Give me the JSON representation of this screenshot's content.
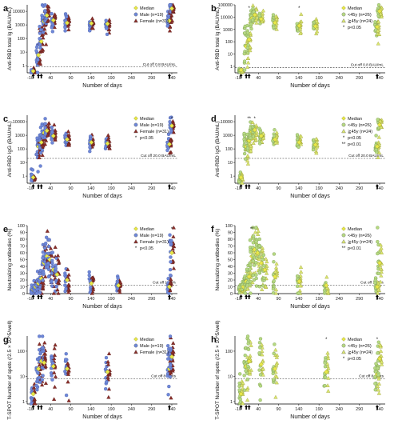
{
  "colors": {
    "median": "#e8e84a",
    "male": "#6f88d8",
    "female": "#8b2f2a",
    "lt45": "#b6d982",
    "ge45": "#d9e670",
    "cutline": "#333333"
  },
  "chart_data": [
    {
      "id": "a",
      "type": "scatter",
      "panel_label": "a",
      "scale": "log",
      "ylabel": "Anti-RBD total Ig (BAU/mL)",
      "xlabel": "Number of days",
      "yticks": [
        "1",
        "10",
        "100",
        "1000",
        "10000"
      ],
      "yrange": [
        0.3,
        30000
      ],
      "xticks": [
        "-10",
        "40",
        "90",
        "140",
        "190",
        "240",
        "290",
        "340"
      ],
      "cutoff": {
        "value": 0.8,
        "label": "Cut off 0.8 BAU/mL"
      },
      "legend": [
        {
          "label": "Median",
          "marker": "diamond",
          "color": "#e8e84a"
        },
        {
          "label": "Male (n=19)",
          "marker": "circle",
          "color": "#6f88d8"
        },
        {
          "label": "Female (n=31)",
          "marker": "triangle",
          "color": "#8b2f2a"
        }
      ],
      "groups": [
        {
          "day": -3,
          "median": 0.4,
          "spread": 0.1
        },
        {
          "day": 10,
          "median": 6,
          "spread": 0.8
        },
        {
          "day": 17,
          "median": 60,
          "spread": 0.7
        },
        {
          "day": 24,
          "median": 1800,
          "spread": 0.5
        },
        {
          "day": 31,
          "median": 5000,
          "spread": 0.4
        },
        {
          "day": 47,
          "median": 2200,
          "spread": 0.3
        },
        {
          "day": 81,
          "median": 1400,
          "spread": 0.3
        },
        {
          "day": 141,
          "median": 1300,
          "spread": 0.25
        },
        {
          "day": 181,
          "median": 1200,
          "spread": 0.25
        },
        {
          "day": 334,
          "median": 2000,
          "spread": 0.4
        },
        {
          "day": 340,
          "median": 16000,
          "spread": 0.3
        }
      ],
      "stars": [],
      "arrows": [
        -3,
        10,
        17,
        334
      ]
    },
    {
      "id": "b",
      "type": "scatter",
      "panel_label": "b",
      "scale": "log",
      "ylabel": "Anti-RBD total Ig (BAU/mL)",
      "xlabel": "Number of days",
      "yticks": [
        "1",
        "10",
        "100",
        "1000",
        "10000",
        "100000"
      ],
      "yrange": [
        0.3,
        100000
      ],
      "xticks": [
        "-10",
        "40",
        "90",
        "140",
        "190",
        "240",
        "290",
        "340"
      ],
      "cutoff": {
        "value": 0.8,
        "label": "Cut off 0.8 BAU/mL"
      },
      "legend": [
        {
          "label": "Median",
          "marker": "diamond",
          "color": "#e8e84a"
        },
        {
          "label": "<45y (n=26)",
          "marker": "circle",
          "color": "#b6d982"
        },
        {
          "label": "≧45y (n=24)",
          "marker": "triangle",
          "color": "#d9e670"
        },
        {
          "label": "p<0.05",
          "marker": "star",
          "color": "#111111",
          "prefix": "*"
        }
      ],
      "groups": [
        {
          "day": -3,
          "median": 0.5,
          "spread": 0.1
        },
        {
          "day": 10,
          "median": 40,
          "spread": 0.8
        },
        {
          "day": 17,
          "median": 150,
          "spread": 0.6
        },
        {
          "day": 24,
          "median": 8000,
          "spread": 0.4
        },
        {
          "day": 31,
          "median": 15000,
          "spread": 0.35
        },
        {
          "day": 47,
          "median": 7000,
          "spread": 0.3
        },
        {
          "day": 81,
          "median": 3500,
          "spread": 0.3
        },
        {
          "day": 141,
          "median": 2000,
          "spread": 0.3
        },
        {
          "day": 181,
          "median": 1800,
          "spread": 0.3
        },
        {
          "day": 334,
          "median": 1600,
          "spread": 0.4
        },
        {
          "day": 340,
          "median": 30000,
          "spread": 0.3
        }
      ],
      "stars": [
        {
          "day": 17,
          "text": "*"
        },
        {
          "day": 141,
          "text": "*"
        }
      ],
      "arrows": [
        -3,
        10,
        17,
        334
      ]
    },
    {
      "id": "c",
      "type": "scatter",
      "panel_label": "c",
      "scale": "log",
      "ylabel": "Anti-RBD IgG (BAU/mL)",
      "xlabel": "Number of days",
      "yticks": [
        "1",
        "10",
        "100",
        "1000",
        "10000"
      ],
      "yrange": [
        0.3,
        30000
      ],
      "xticks": [
        "-10",
        "40",
        "90",
        "140",
        "190",
        "240",
        "290",
        "340"
      ],
      "cutoff": {
        "value": 20,
        "label": "Cut off 20.0 BAU/mL"
      },
      "legend": [
        {
          "label": "Median",
          "marker": "diamond",
          "color": "#e8e84a"
        },
        {
          "label": "Male (n=19)",
          "marker": "circle",
          "color": "#6f88d8"
        },
        {
          "label": "Female (n=31)",
          "marker": "triangle",
          "color": "#8b2f2a"
        },
        {
          "label": "p<0.05",
          "marker": "star",
          "color": "#111111",
          "prefix": "*"
        }
      ],
      "groups": [
        {
          "day": -3,
          "median": 0.8,
          "spread": 0.25
        },
        {
          "day": 10,
          "median": 150,
          "spread": 0.6
        },
        {
          "day": 17,
          "median": 300,
          "spread": 0.5
        },
        {
          "day": 24,
          "median": 1500,
          "spread": 0.4
        },
        {
          "day": 31,
          "median": 2200,
          "spread": 0.35
        },
        {
          "day": 47,
          "median": 900,
          "spread": 0.3
        },
        {
          "day": 81,
          "median": 500,
          "spread": 0.3
        },
        {
          "day": 141,
          "median": 300,
          "spread": 0.3
        },
        {
          "day": 181,
          "median": 250,
          "spread": 0.3
        },
        {
          "day": 334,
          "median": 220,
          "spread": 0.35
        },
        {
          "day": 340,
          "median": 5000,
          "spread": 0.3
        }
      ],
      "stars": [
        {
          "day": 340,
          "text": "*"
        }
      ],
      "arrows": [
        -3,
        10,
        17,
        334
      ]
    },
    {
      "id": "d",
      "type": "scatter",
      "panel_label": "d",
      "scale": "log",
      "ylabel": "Anti-RBD IgG (BAU/mL)",
      "xlabel": "Number of days",
      "yticks": [
        "1",
        "10",
        "100",
        "1000",
        "10000"
      ],
      "yrange": [
        0.3,
        30000
      ],
      "xticks": [
        "-10",
        "40",
        "90",
        "140",
        "190",
        "240",
        "290",
        "340"
      ],
      "cutoff": {
        "value": 20,
        "label": "Cut off 20.0 BAU/mL"
      },
      "legend": [
        {
          "label": "Median",
          "marker": "diamond",
          "color": "#e8e84a"
        },
        {
          "label": "<45y (n=26)",
          "marker": "circle",
          "color": "#b6d982"
        },
        {
          "label": "≧45y (n=24)",
          "marker": "triangle",
          "color": "#d9e670"
        },
        {
          "label": "p<0.05",
          "marker": "star",
          "color": "#111111",
          "prefix": "*"
        },
        {
          "label": "p<0.01",
          "marker": "star",
          "color": "#111111",
          "prefix": "**"
        }
      ],
      "groups": [
        {
          "day": -3,
          "median": 0.8,
          "spread": 0.25
        },
        {
          "day": 10,
          "median": 150,
          "spread": 0.6
        },
        {
          "day": 17,
          "median": 400,
          "spread": 0.5
        },
        {
          "day": 24,
          "median": 1800,
          "spread": 0.4
        },
        {
          "day": 31,
          "median": 2500,
          "spread": 0.35
        },
        {
          "day": 47,
          "median": 900,
          "spread": 0.3
        },
        {
          "day": 81,
          "median": 500,
          "spread": 0.3
        },
        {
          "day": 141,
          "median": 300,
          "spread": 0.3
        },
        {
          "day": 181,
          "median": 200,
          "spread": 0.3
        },
        {
          "day": 334,
          "median": 150,
          "spread": 0.35
        },
        {
          "day": 340,
          "median": 6000,
          "spread": 0.3
        }
      ],
      "stars": [
        {
          "day": 17,
          "text": "**"
        },
        {
          "day": 31,
          "text": "*"
        }
      ],
      "arrows": [
        -3,
        10,
        17,
        334
      ]
    },
    {
      "id": "e",
      "type": "scatter",
      "panel_label": "e",
      "scale": "linear",
      "ylabel": "Neutralizing antibodies  (%)",
      "xlabel": "Number of days",
      "yticks": [
        "0",
        "10",
        "20",
        "30",
        "40",
        "50",
        "60",
        "70",
        "80",
        "90",
        "100"
      ],
      "yrange": [
        0,
        100
      ],
      "xticks": [
        "-10",
        "40",
        "90",
        "140",
        "190",
        "240",
        "290",
        "340"
      ],
      "cutoff": {
        "value": 12.5,
        "label": "Cut off 12.5%"
      },
      "legend": [
        {
          "label": "Median",
          "marker": "diamond",
          "color": "#e8e84a"
        },
        {
          "label": "Male (n=19)",
          "marker": "circle",
          "color": "#6f88d8"
        },
        {
          "label": "Female (n=31)",
          "marker": "triangle",
          "color": "#8b2f2a"
        },
        {
          "label": "p<0.05",
          "marker": "star",
          "color": "#111111",
          "prefix": "*"
        }
      ],
      "groups": [
        {
          "day": -3,
          "median": 6,
          "spread": 4
        },
        {
          "day": 3,
          "median": 10,
          "spread": 6
        },
        {
          "day": 10,
          "median": 15,
          "spread": 8
        },
        {
          "day": 17,
          "median": 22,
          "spread": 12
        },
        {
          "day": 24,
          "median": 45,
          "spread": 18
        },
        {
          "day": 31,
          "median": 55,
          "spread": 20
        },
        {
          "day": 38,
          "median": 50,
          "spread": 20
        },
        {
          "day": 47,
          "median": 35,
          "spread": 16
        },
        {
          "day": 56,
          "median": 28,
          "spread": 14
        },
        {
          "day": 81,
          "median": 20,
          "spread": 12
        },
        {
          "day": 141,
          "median": 15,
          "spread": 10
        },
        {
          "day": 208,
          "median": 12,
          "spread": 8
        },
        {
          "day": 334,
          "median": 10,
          "spread": 6
        },
        {
          "day": 340,
          "median": 60,
          "spread": 20
        }
      ],
      "stars": [
        {
          "day": 340,
          "text": "*"
        }
      ],
      "arrows": [
        -3,
        10,
        17,
        334
      ]
    },
    {
      "id": "f",
      "type": "scatter",
      "panel_label": "f",
      "scale": "linear",
      "ylabel": "Neutralizing antibodies  (%)",
      "xlabel": "Number of days",
      "yticks": [
        "0",
        "10",
        "20",
        "30",
        "40",
        "50",
        "60",
        "70",
        "80",
        "90",
        "100"
      ],
      "yrange": [
        0,
        100
      ],
      "xticks": [
        "-10",
        "40",
        "90",
        "140",
        "190",
        "240",
        "290",
        "340"
      ],
      "cutoff": {
        "value": 12.5,
        "label": "Cut off 12.5%"
      },
      "legend": [
        {
          "label": "Median",
          "marker": "diamond",
          "color": "#e8e84a"
        },
        {
          "label": "<45y (n=26)",
          "marker": "circle",
          "color": "#b6d982"
        },
        {
          "label": "≧45y (n=24)",
          "marker": "triangle",
          "color": "#d9e670"
        },
        {
          "label": "p<0.01",
          "marker": "star",
          "color": "#111111",
          "prefix": "**"
        }
      ],
      "groups": [
        {
          "day": -3,
          "median": 6,
          "spread": 4
        },
        {
          "day": 3,
          "median": 10,
          "spread": 6
        },
        {
          "day": 10,
          "median": 18,
          "spread": 8
        },
        {
          "day": 17,
          "median": 25,
          "spread": 12
        },
        {
          "day": 24,
          "median": 55,
          "spread": 20
        },
        {
          "day": 31,
          "median": 65,
          "spread": 20
        },
        {
          "day": 38,
          "median": 60,
          "spread": 20
        },
        {
          "day": 47,
          "median": 45,
          "spread": 18
        },
        {
          "day": 56,
          "median": 35,
          "spread": 16
        },
        {
          "day": 81,
          "median": 25,
          "spread": 14
        },
        {
          "day": 141,
          "median": 18,
          "spread": 10
        },
        {
          "day": 208,
          "median": 12,
          "spread": 8
        },
        {
          "day": 334,
          "median": 10,
          "spread": 6
        },
        {
          "day": 340,
          "median": 45,
          "spread": 20
        }
      ],
      "stars": [
        {
          "day": 24,
          "text": "**"
        }
      ],
      "arrows": [
        -3,
        10,
        17,
        334
      ]
    },
    {
      "id": "g",
      "type": "scatter",
      "panel_label": "g",
      "scale": "log",
      "ylabel": "T-SPOT Number of spots (/2.5 × 10^5/well)",
      "xlabel": "Number of days",
      "yticks": [
        "1",
        "10",
        "100"
      ],
      "yrange": [
        0.8,
        400
      ],
      "xticks": [
        "-10",
        "40",
        "90",
        "140",
        "190",
        "240",
        "290",
        "340"
      ],
      "cutoff": {
        "value": 8,
        "label": "Cut off 8 spots"
      },
      "legend": [
        {
          "label": "Median",
          "marker": "diamond",
          "color": "#e8e84a"
        },
        {
          "label": "Male (n=19)",
          "marker": "circle",
          "color": "#6f88d8"
        },
        {
          "label": "Female (n=31)",
          "marker": "triangle",
          "color": "#8b2f2a"
        }
      ],
      "groups": [
        {
          "day": -3,
          "median": 2,
          "spread": 0.3
        },
        {
          "day": 10,
          "median": 20,
          "spread": 0.5
        },
        {
          "day": 17,
          "median": 40,
          "spread": 0.5
        },
        {
          "day": 24,
          "median": 35,
          "spread": 0.45
        },
        {
          "day": 47,
          "median": 25,
          "spread": 0.45
        },
        {
          "day": 81,
          "median": 20,
          "spread": 0.45
        },
        {
          "day": 181,
          "median": 15,
          "spread": 0.45
        },
        {
          "day": 334,
          "median": 20,
          "spread": 0.45
        },
        {
          "day": 340,
          "median": 60,
          "spread": 0.4
        }
      ],
      "stars": [],
      "arrows": [
        -3,
        10,
        17,
        334
      ]
    },
    {
      "id": "h",
      "type": "scatter",
      "panel_label": "h",
      "scale": "log",
      "ylabel": "T-SPOT Number of spots (/2.5 × 10^5/well)",
      "xlabel": "Number of days",
      "yticks": [
        "1",
        "10",
        "100"
      ],
      "yrange": [
        0.8,
        400
      ],
      "xticks": [
        "-10",
        "40",
        "90",
        "140",
        "190",
        "240",
        "290",
        "340"
      ],
      "cutoff": {
        "value": 8,
        "label": "Cut off 8 spots"
      },
      "legend": [
        {
          "label": "Median",
          "marker": "diamond",
          "color": "#e8e84a"
        },
        {
          "label": "<45y (n=26)",
          "marker": "circle",
          "color": "#b6d982"
        },
        {
          "label": "≧45y (n=24)",
          "marker": "triangle",
          "color": "#d9e670"
        },
        {
          "label": "p<0.05",
          "marker": "star",
          "color": "#111111",
          "prefix": "*"
        }
      ],
      "groups": [
        {
          "day": -3,
          "median": 2,
          "spread": 0.3
        },
        {
          "day": 10,
          "median": 25,
          "spread": 0.5
        },
        {
          "day": 17,
          "median": 40,
          "spread": 0.5
        },
        {
          "day": 47,
          "median": 30,
          "spread": 0.45
        },
        {
          "day": 81,
          "median": 20,
          "spread": 0.45
        },
        {
          "day": 208,
          "median": 15,
          "spread": 0.45
        },
        {
          "day": 334,
          "median": 12,
          "spread": 0.45
        },
        {
          "day": 340,
          "median": 50,
          "spread": 0.4
        }
      ],
      "stars": [
        {
          "day": 208,
          "text": "*"
        },
        {
          "day": 334,
          "text": "*"
        }
      ],
      "arrows": [
        -3,
        10,
        17,
        334
      ]
    }
  ]
}
